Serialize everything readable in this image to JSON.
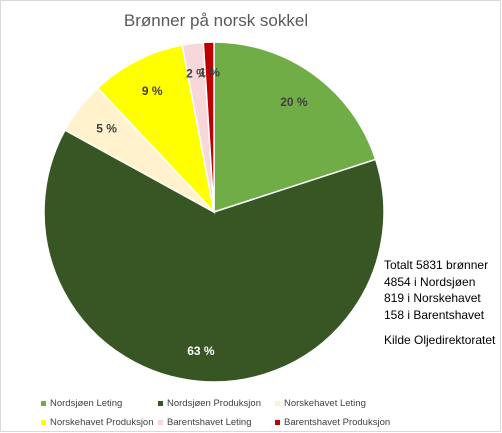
{
  "chart_data": {
    "type": "pie",
    "title": "Brønner på norsk sokkel",
    "slices": [
      {
        "name": "Nordsjøen Leting",
        "value": 20,
        "label": "20 %",
        "color": "#70ad47"
      },
      {
        "name": "Nordsjøen Produksjon",
        "value": 63,
        "label": "63 %",
        "color": "#375623"
      },
      {
        "name": "Norskehavet Leting",
        "value": 5,
        "label": "5 %",
        "color": "#fff2cc"
      },
      {
        "name": "Norskehavet Produksjon",
        "value": 9,
        "label": "9 %",
        "color": "#ffff00"
      },
      {
        "name": "Barentshavet Leting",
        "value": 2,
        "label": "2 %",
        "color": "#f8d7da"
      },
      {
        "name": "Barentshavet Produksjon",
        "value": 1,
        "label": "1 %",
        "color": "#c00000"
      }
    ],
    "legend_position": "bottom"
  },
  "annotation": {
    "lines": [
      "Totalt 5831 brønner",
      "4854 i Nordsjøen",
      "819 i Norskehavet",
      "158 i Barentshavet"
    ],
    "source": "Kilde Oljedirektoratet"
  }
}
